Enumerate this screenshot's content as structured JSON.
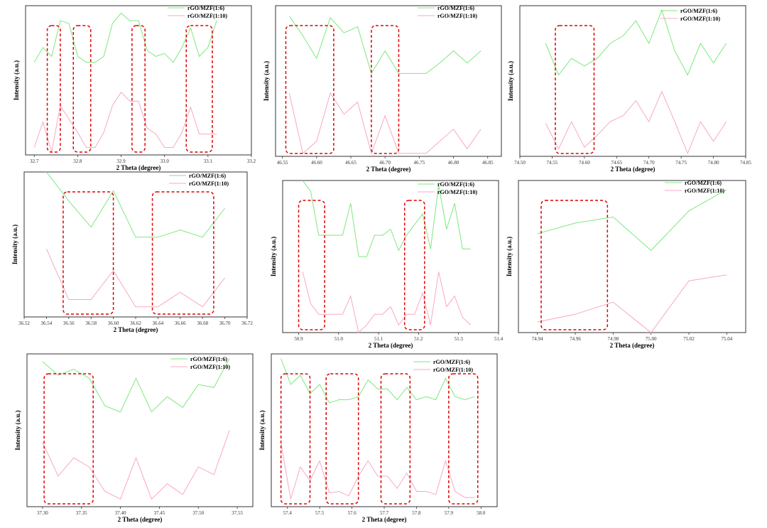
{
  "colors": {
    "series_1_6": "#7ee87e",
    "series_1_10": "#f7a8c4",
    "box": "#e00000",
    "frame": "#333333"
  },
  "chart_data": [
    {
      "type": "line",
      "xlabel": "2 Theta (degree)",
      "ylabel": "Intensity (a.u.)",
      "xlim": [
        32.68,
        33.2
      ],
      "ylim": [
        0,
        1
      ],
      "xticks": [
        "32.7",
        "32.8",
        "32.9",
        "33.0",
        "33.1",
        "33.2"
      ],
      "legend": [
        "rGO/MZF(1:6)",
        "rGO/MZF(1:10)"
      ],
      "series": [
        {
          "name": "rGO/MZF(1:6)",
          "x": [
            32.7,
            32.72,
            32.74,
            32.76,
            32.78,
            32.8,
            32.82,
            32.84,
            32.86,
            32.88,
            32.9,
            32.92,
            32.94,
            32.96,
            32.98,
            33.0,
            33.02,
            33.04,
            33.06,
            33.08,
            33.1,
            33.12
          ],
          "y": [
            0.62,
            0.72,
            0.66,
            0.9,
            0.88,
            0.66,
            0.62,
            0.62,
            0.66,
            0.88,
            0.95,
            0.9,
            0.9,
            0.7,
            0.66,
            0.68,
            0.62,
            0.72,
            0.85,
            0.66,
            0.72,
            0.9
          ]
        },
        {
          "name": "rGO/MZF(1:10)",
          "x": [
            32.7,
            32.72,
            32.74,
            32.76,
            32.78,
            32.8,
            32.82,
            32.84,
            32.86,
            32.88,
            32.9,
            32.92,
            32.94,
            32.96,
            32.98,
            33.0,
            33.02,
            33.04,
            33.06,
            33.08,
            33.1,
            33.12
          ],
          "y": [
            0.05,
            0.22,
            0.02,
            0.33,
            0.24,
            0.15,
            0.05,
            0.05,
            0.15,
            0.33,
            0.42,
            0.36,
            0.36,
            0.18,
            0.14,
            0.05,
            0.05,
            0.15,
            0.32,
            0.14,
            0.14,
            0.14
          ]
        }
      ],
      "highlight_boxes": [
        [
          32.73,
          32.76
        ],
        [
          32.79,
          32.83
        ],
        [
          32.925,
          32.955
        ],
        [
          33.05,
          33.11
        ]
      ]
    },
    {
      "type": "line",
      "xlabel": "2 Theta (degree)",
      "ylabel": "Intensity (a.u.)",
      "xlim": [
        46.54,
        46.87
      ],
      "ylim": [
        0,
        1
      ],
      "xticks": [
        "46.55",
        "46.60",
        "46.65",
        "46.70",
        "46.75",
        "46.80",
        "46.85"
      ],
      "legend": [
        "rGO/MZF(1:6)",
        "rGO/MZF(1:10)"
      ],
      "series": [
        {
          "name": "rGO/MZF(1:6)",
          "x": [
            46.56,
            46.58,
            46.6,
            46.62,
            46.64,
            46.66,
            46.68,
            46.7,
            46.72,
            46.74,
            46.76,
            46.78,
            46.8,
            46.82,
            46.84
          ],
          "y": [
            0.93,
            0.8,
            0.65,
            0.92,
            0.82,
            0.86,
            0.55,
            0.7,
            0.55,
            0.55,
            0.55,
            0.62,
            0.7,
            0.62,
            0.7
          ]
        },
        {
          "name": "rGO/MZF(1:10)",
          "x": [
            46.56,
            46.58,
            46.6,
            46.62,
            46.64,
            46.66,
            46.68,
            46.7,
            46.72,
            46.74,
            46.76,
            46.78,
            46.8,
            46.82,
            46.84
          ],
          "y": [
            0.42,
            0.02,
            0.1,
            0.42,
            0.28,
            0.36,
            0.02,
            0.27,
            0.02,
            0.02,
            0.02,
            0.1,
            0.18,
            0.05,
            0.18
          ]
        }
      ],
      "highlight_boxes": [
        [
          46.555,
          46.625
        ],
        [
          46.68,
          46.72
        ]
      ]
    },
    {
      "type": "line",
      "xlabel": "2 Theta (degree)",
      "ylabel": "Intensity (a.u.)",
      "xlim": [
        74.5,
        74.85
      ],
      "ylim": [
        0,
        1
      ],
      "xticks": [
        "74.50",
        "74.55",
        "74.60",
        "74.65",
        "74.70",
        "74.75",
        "74.80",
        "74.85"
      ],
      "legend": [
        "rGO/MZF(1:6)",
        "rGO/MZF(1:10)"
      ],
      "series": [
        {
          "name": "rGO/MZF(1:6)",
          "x": [
            74.54,
            74.56,
            74.58,
            74.6,
            74.62,
            74.64,
            74.66,
            74.68,
            74.7,
            74.72,
            74.74,
            74.76,
            74.78,
            74.8,
            74.82
          ],
          "y": [
            0.75,
            0.54,
            0.65,
            0.6,
            0.65,
            0.75,
            0.8,
            0.9,
            0.75,
            0.97,
            0.7,
            0.54,
            0.75,
            0.62,
            0.75
          ]
        },
        {
          "name": "rGO/MZF(1:10)",
          "x": [
            74.54,
            74.56,
            74.58,
            74.6,
            74.62,
            74.64,
            74.66,
            74.68,
            74.7,
            74.72,
            74.74,
            74.76,
            74.78,
            74.8,
            74.82
          ],
          "y": [
            0.22,
            0.05,
            0.23,
            0.06,
            0.14,
            0.23,
            0.27,
            0.37,
            0.23,
            0.43,
            0.23,
            0.02,
            0.23,
            0.1,
            0.23
          ]
        }
      ],
      "highlight_boxes": [
        [
          74.555,
          74.615
        ]
      ]
    },
    {
      "type": "line",
      "xlabel": "2 Theta (degree)",
      "ylabel": "Intensity (a.u.)",
      "xlim": [
        36.52,
        36.72
      ],
      "ylim": [
        0,
        1
      ],
      "xticks": [
        "36.52",
        "36.54",
        "36.56",
        "36.58",
        "36.60",
        "36.62",
        "36.64",
        "36.66",
        "36.68",
        "36.70",
        "36.72"
      ],
      "legend": [
        "rGO/MZF(1:6)",
        "rGO/MZF(1:10)"
      ],
      "series": [
        {
          "name": "rGO/MZF(1:6)",
          "x": [
            36.54,
            36.56,
            36.58,
            36.6,
            36.62,
            36.64,
            36.66,
            36.68,
            36.7
          ],
          "y": [
            1.0,
            0.8,
            0.62,
            0.87,
            0.55,
            0.55,
            0.6,
            0.55,
            0.75
          ]
        },
        {
          "name": "rGO/MZF(1:10)",
          "x": [
            36.54,
            36.56,
            36.58,
            36.6,
            36.62,
            36.64,
            36.66,
            36.68,
            36.7
          ],
          "y": [
            0.47,
            0.12,
            0.12,
            0.32,
            0.07,
            0.07,
            0.17,
            0.07,
            0.27
          ]
        }
      ],
      "highlight_boxes": [
        [
          36.555,
          36.6
        ],
        [
          36.635,
          36.69
        ]
      ]
    },
    {
      "type": "line",
      "xlabel": "2 Theta (degree)",
      "ylabel": "Intensity (a.u.)",
      "xlim": [
        50.86,
        51.4
      ],
      "ylim": [
        0,
        1
      ],
      "xticks": [
        "50.9",
        "51.0",
        "51.1",
        "51.2",
        "51.3",
        "51.4"
      ],
      "legend": [
        "rGO/MZF(1:6)",
        "rGO/MZF(1:10)"
      ],
      "series": [
        {
          "name": "rGO/MZF(1:6)",
          "x": [
            50.91,
            50.93,
            50.95,
            50.97,
            50.99,
            51.01,
            51.03,
            51.05,
            51.07,
            51.09,
            51.11,
            51.13,
            51.15,
            51.17,
            51.19,
            51.21,
            51.23,
            51.25,
            51.27,
            51.29,
            51.31,
            51.33
          ],
          "y": [
            1.0,
            0.93,
            0.64,
            0.64,
            0.64,
            0.64,
            0.85,
            0.5,
            0.5,
            0.64,
            0.64,
            0.68,
            0.54,
            0.64,
            0.71,
            0.78,
            0.55,
            0.97,
            0.68,
            0.85,
            0.55,
            0.55
          ]
        },
        {
          "name": "rGO/MZF(1:10)",
          "x": [
            50.91,
            50.93,
            50.95,
            50.97,
            50.99,
            51.01,
            51.03,
            51.05,
            51.07,
            51.09,
            51.11,
            51.13,
            51.15,
            51.17,
            51.19,
            51.21,
            51.23,
            51.25,
            51.27,
            51.29,
            51.31,
            51.33
          ],
          "y": [
            0.4,
            0.19,
            0.12,
            0.12,
            0.12,
            0.12,
            0.24,
            0.0,
            0.05,
            0.12,
            0.12,
            0.17,
            0.05,
            0.12,
            0.12,
            0.26,
            0.05,
            0.4,
            0.17,
            0.24,
            0.1,
            0.05
          ]
        }
      ],
      "highlight_boxes": [
        [
          50.9,
          50.965
        ],
        [
          51.165,
          51.215
        ]
      ]
    },
    {
      "type": "line",
      "xlabel": "2 Theta (degree)",
      "ylabel": "Intensity (a.u.)",
      "xlim": [
        74.93,
        75.05
      ],
      "ylim": [
        0,
        1
      ],
      "xticks": [
        "74.94",
        "74.96",
        "74.98",
        "75.00",
        "75.02",
        "75.04"
      ],
      "legend": [
        "rGO/MZF(1:6)",
        "rGO/MZF(1:10)"
      ],
      "series": [
        {
          "name": "rGO/MZF(1:6)",
          "x": [
            74.94,
            74.96,
            74.98,
            75.0,
            75.02,
            75.04
          ],
          "y": [
            0.65,
            0.72,
            0.76,
            0.54,
            0.8,
            0.94
          ]
        },
        {
          "name": "rGO/MZF(1:10)",
          "x": [
            74.94,
            74.96,
            74.98,
            75.0,
            75.02,
            75.04
          ],
          "y": [
            0.07,
            0.12,
            0.2,
            0.0,
            0.34,
            0.38
          ]
        }
      ],
      "highlight_boxes": [
        [
          74.942,
          74.977
        ]
      ]
    },
    {
      "type": "line",
      "xlabel": "2 Theta (degree)",
      "ylabel": "Intensity (a.u.)",
      "xlim": [
        37.28,
        37.57
      ],
      "ylim": [
        0,
        1
      ],
      "xticks": [
        "37.30",
        "37.35",
        "37.40",
        "37.45",
        "37.50",
        "37.55"
      ],
      "legend": [
        "rGO/MZF(1:6)",
        "rGO/MZF(1:10)"
      ],
      "series": [
        {
          "name": "rGO/MZF(1:6)",
          "x": [
            37.3,
            37.32,
            37.34,
            37.36,
            37.38,
            37.4,
            37.42,
            37.44,
            37.46,
            37.48,
            37.5,
            37.52,
            37.54
          ],
          "y": [
            0.95,
            0.86,
            0.9,
            0.84,
            0.66,
            0.62,
            0.84,
            0.62,
            0.72,
            0.65,
            0.8,
            0.78,
            0.97
          ]
        },
        {
          "name": "rGO/MZF(1:10)",
          "x": [
            37.3,
            37.32,
            37.34,
            37.36,
            37.38,
            37.4,
            37.42,
            37.44,
            37.46,
            37.48,
            37.5,
            37.52,
            37.54
          ],
          "y": [
            0.42,
            0.2,
            0.32,
            0.26,
            0.1,
            0.05,
            0.32,
            0.05,
            0.15,
            0.08,
            0.26,
            0.21,
            0.5
          ]
        }
      ],
      "highlight_boxes": [
        [
          37.302,
          37.365
        ]
      ]
    },
    {
      "type": "line",
      "xlabel": "2 Theta (degree)",
      "ylabel": "Intensity (a.u.)",
      "xlim": [
        57.35,
        58.05
      ],
      "ylim": [
        0,
        1
      ],
      "xticks": [
        "57.4",
        "57.5",
        "57.6",
        "57.7",
        "57.8",
        "57.9",
        "58.0"
      ],
      "legend": [
        "rGO/MZF(1:6)",
        "rGO/MZF(1:10)"
      ],
      "series": [
        {
          "name": "rGO/MZF(1:6)",
          "x": [
            57.38,
            57.41,
            57.44,
            57.47,
            57.5,
            57.53,
            57.56,
            57.59,
            57.62,
            57.65,
            57.68,
            57.71,
            57.74,
            57.77,
            57.8,
            57.83,
            57.86,
            57.89,
            57.92,
            57.95,
            57.98
          ],
          "y": [
            0.97,
            0.8,
            0.86,
            0.74,
            0.8,
            0.68,
            0.7,
            0.7,
            0.72,
            0.83,
            0.77,
            0.77,
            0.7,
            0.78,
            0.7,
            0.72,
            0.7,
            0.84,
            0.72,
            0.7,
            0.72
          ]
        },
        {
          "name": "rGO/MZF(1:10)",
          "x": [
            57.38,
            57.41,
            57.44,
            57.47,
            57.5,
            57.53,
            57.56,
            57.59,
            57.62,
            57.65,
            57.68,
            57.71,
            57.74,
            57.77,
            57.8,
            57.83,
            57.86,
            57.89,
            57.92,
            57.95,
            57.98
          ],
          "y": [
            0.42,
            0.05,
            0.26,
            0.17,
            0.3,
            0.09,
            0.1,
            0.07,
            0.2,
            0.3,
            0.2,
            0.2,
            0.12,
            0.22,
            0.1,
            0.1,
            0.08,
            0.3,
            0.1,
            0.06,
            0.06
          ]
        }
      ],
      "highlight_boxes": [
        [
          57.38,
          57.47
        ],
        [
          57.52,
          57.62
        ],
        [
          57.69,
          57.78
        ],
        [
          57.9,
          57.99
        ]
      ]
    }
  ]
}
